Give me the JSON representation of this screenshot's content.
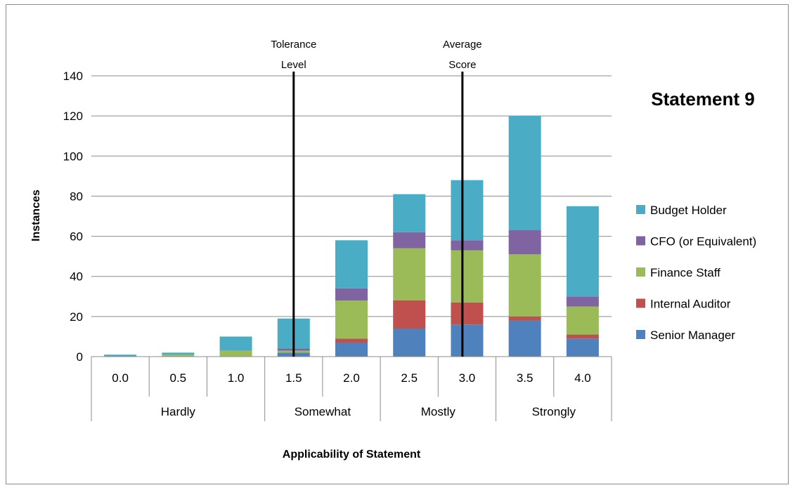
{
  "chart_data": {
    "type": "bar",
    "stacked": true,
    "title": "Statement 9",
    "xlabel": "Applicability of Statement",
    "ylabel": "Instances",
    "ylim": [
      0,
      140
    ],
    "yticks": [
      0,
      20,
      40,
      60,
      80,
      100,
      120,
      140
    ],
    "grid": true,
    "legend_position": "right",
    "categories": [
      "0.0",
      "0.5",
      "1.0",
      "1.5",
      "2.0",
      "2.5",
      "3.0",
      "3.5",
      "4.0"
    ],
    "groups": [
      {
        "label": "Hardly",
        "span": [
          0,
          2
        ]
      },
      {
        "label": "Somewhat",
        "span": [
          3,
          4
        ]
      },
      {
        "label": "Mostly",
        "span": [
          5,
          6
        ]
      },
      {
        "label": "Strongly",
        "span": [
          7,
          8
        ]
      }
    ],
    "series": [
      {
        "name": "Senior Manager",
        "color": "#4f81bd",
        "values": [
          0,
          0,
          0,
          2,
          7,
          14,
          16,
          18,
          9
        ]
      },
      {
        "name": "Internal Auditor",
        "color": "#c0504d",
        "values": [
          0,
          0,
          0,
          0,
          2,
          14,
          11,
          2,
          2
        ]
      },
      {
        "name": "Finance Staff",
        "color": "#9bbb59",
        "values": [
          0,
          1,
          3,
          1,
          19,
          26,
          26,
          31,
          14
        ]
      },
      {
        "name": "CFO (or Equivalent)",
        "color": "#8064a2",
        "values": [
          0,
          0,
          0,
          1,
          6,
          8,
          5,
          12,
          5
        ]
      },
      {
        "name": "Budget Holder",
        "color": "#4bacc6",
        "values": [
          1,
          1,
          7,
          15,
          24,
          19,
          30,
          57,
          45
        ]
      }
    ],
    "reference_lines": [
      {
        "label_line1": "Tolerance",
        "label_line2": "Level",
        "x": 1.5
      },
      {
        "label_line1": "Average",
        "label_line2": "Score",
        "x": 2.96
      }
    ]
  }
}
